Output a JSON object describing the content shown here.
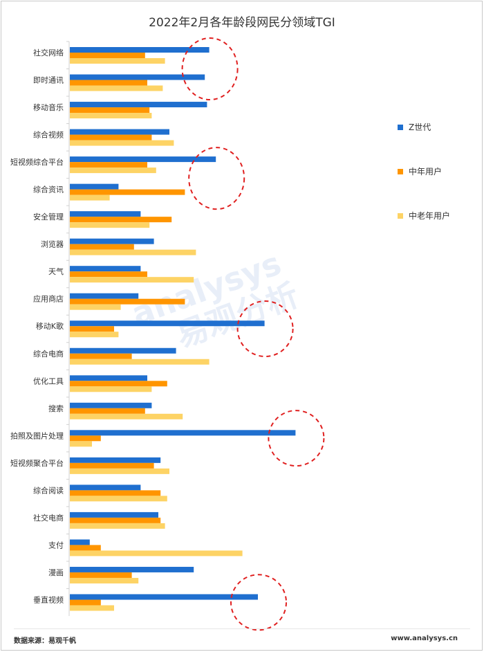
{
  "title": "2022年2月各年龄段网民分领域TGI",
  "footer": {
    "source": "数据来源：易观千帆",
    "url": "www.analysys.cn"
  },
  "watermark": {
    "latin": "analysys",
    "chinese": "易观分析"
  },
  "colors": {
    "z_gen": "#1f6fcf",
    "middle_age": "#ff9500",
    "elderly": "#fdd365",
    "highlight_circle": "#e02020"
  },
  "chart_data": {
    "type": "bar",
    "orientation": "horizontal",
    "title": "2022年2月各年龄段网民分领域TGI",
    "legend_position": "right",
    "categories": [
      "社交网络",
      "即时通讯",
      "移动音乐",
      "综合视频",
      "短视频综合平台",
      "综合资讯",
      "安全管理",
      "浏览器",
      "天气",
      "应用商店",
      "移动K歌",
      "综合电商",
      "优化工具",
      "搜索",
      "拍照及图片处理",
      "短视频聚合平台",
      "综合阅读",
      "社交电商",
      "支付",
      "漫画",
      "垂直视频"
    ],
    "series": [
      {
        "name": "Z世代",
        "color": "#1f6fcf",
        "values": [
          123,
          121,
          122,
          105,
          126,
          82,
          92,
          98,
          92,
          91,
          148,
          108,
          95,
          97,
          162,
          101,
          92,
          100,
          69,
          116,
          145
        ]
      },
      {
        "name": "中年用户",
        "color": "#ff9500",
        "values": [
          94,
          95,
          96,
          97,
          95,
          112,
          106,
          89,
          95,
          112,
          80,
          88,
          104,
          94,
          74,
          98,
          101,
          101,
          74,
          88,
          74
        ]
      },
      {
        "name": "中老年用户",
        "color": "#fdd365",
        "values": [
          103,
          102,
          97,
          107,
          99,
          78,
          96,
          117,
          116,
          83,
          82,
          123,
          97,
          111,
          70,
          105,
          104,
          103,
          138,
          91,
          80
        ]
      }
    ],
    "highlighted_categories": [
      "社交网络",
      "即时通讯",
      "短视频综合平台",
      "综合资讯",
      "移动K歌",
      "拍照及图片处理",
      "垂直视频"
    ]
  }
}
